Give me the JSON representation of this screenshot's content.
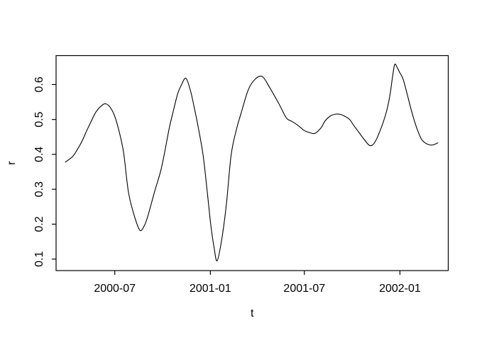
{
  "figure": {
    "background": "#ffffff",
    "foreground": "#000000"
  },
  "chart_data": {
    "type": "line",
    "title": "",
    "xlabel": "t",
    "ylabel": "r",
    "line_color": "#000000",
    "box_color": "#000000",
    "legend": "none",
    "grid": "off",
    "x_ticks": [
      {
        "date": "2000-07-01",
        "label": "2000-07"
      },
      {
        "date": "2001-01-01",
        "label": "2001-01"
      },
      {
        "date": "2001-07-01",
        "label": "2001-07"
      },
      {
        "date": "2002-01-01",
        "label": "2002-01"
      }
    ],
    "y_ticks": [
      0.1,
      0.2,
      0.3,
      0.4,
      0.5,
      0.6
    ],
    "x_domain": [
      "2000-03-10",
      "2002-04-04"
    ],
    "y_domain": [
      0.067,
      0.683
    ],
    "ylim_data": [
      0.09,
      0.66
    ],
    "series": [
      {
        "name": "r",
        "x": [
          "2000-03-28",
          "2000-04-11",
          "2000-04-20",
          "2000-04-29",
          "2000-05-08",
          "2000-05-18",
          "2000-05-26",
          "2000-06-05",
          "2000-06-13",
          "2000-06-21",
          "2000-06-30",
          "2000-07-09",
          "2000-07-18",
          "2000-07-27",
          "2000-08-06",
          "2000-08-18",
          "2000-08-27",
          "2000-09-03",
          "2000-09-16",
          "2000-09-27",
          "2000-10-04",
          "2000-10-14",
          "2000-10-21",
          "2000-10-30",
          "2000-11-06",
          "2000-11-15",
          "2000-11-24",
          "2000-12-01",
          "2000-12-08",
          "2000-12-18",
          "2000-12-26",
          "2001-01-02",
          "2001-01-08",
          "2001-01-14",
          "2001-01-23",
          "2001-02-01",
          "2001-02-10",
          "2001-02-20",
          "2001-03-01",
          "2001-03-15",
          "2001-03-28",
          "2001-04-11",
          "2001-04-25",
          "2001-05-13",
          "2001-05-27",
          "2001-06-05",
          "2001-06-12",
          "2001-06-22",
          "2001-06-30",
          "2001-07-10",
          "2001-07-21",
          "2001-08-02",
          "2001-08-10",
          "2001-08-20",
          "2001-08-29",
          "2001-09-07",
          "2001-09-16",
          "2001-09-26",
          "2001-10-04",
          "2001-10-14",
          "2001-10-24",
          "2001-11-03",
          "2001-11-10",
          "2001-11-16",
          "2001-11-23",
          "2001-11-30",
          "2001-12-07",
          "2001-12-13",
          "2001-12-18",
          "2001-12-22",
          "2001-12-27",
          "2001-12-31",
          "2002-01-07",
          "2002-01-14",
          "2002-01-21",
          "2002-01-28",
          "2002-02-04",
          "2002-02-12",
          "2002-02-23",
          "2002-03-05",
          "2002-03-15"
        ],
        "y": [
          0.378,
          0.394,
          0.414,
          0.438,
          0.468,
          0.499,
          0.522,
          0.539,
          0.545,
          0.537,
          0.513,
          0.468,
          0.405,
          0.295,
          0.232,
          0.183,
          0.196,
          0.225,
          0.295,
          0.35,
          0.398,
          0.476,
          0.52,
          0.573,
          0.598,
          0.618,
          0.581,
          0.534,
          0.483,
          0.398,
          0.293,
          0.196,
          0.135,
          0.095,
          0.157,
          0.259,
          0.398,
          0.47,
          0.517,
          0.585,
          0.615,
          0.623,
          0.592,
          0.545,
          0.505,
          0.496,
          0.49,
          0.479,
          0.469,
          0.463,
          0.46,
          0.476,
          0.496,
          0.51,
          0.515,
          0.515,
          0.51,
          0.5,
          0.483,
          0.463,
          0.443,
          0.426,
          0.428,
          0.441,
          0.465,
          0.493,
          0.528,
          0.572,
          0.625,
          0.658,
          0.648,
          0.636,
          0.616,
          0.578,
          0.537,
          0.5,
          0.469,
          0.442,
          0.429,
          0.427,
          0.433
        ]
      }
    ]
  }
}
